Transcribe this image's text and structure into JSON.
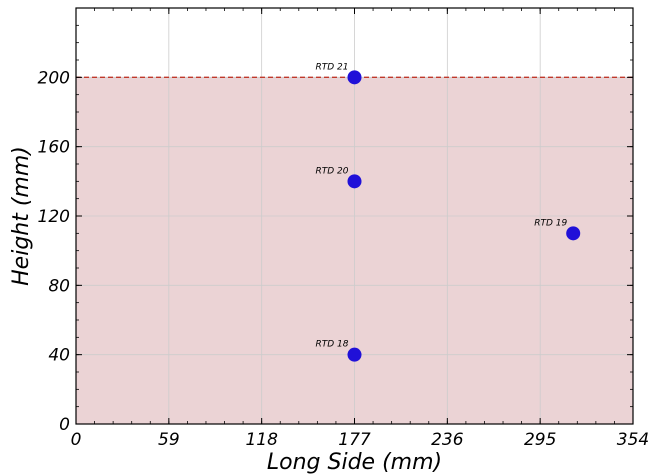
{
  "chart_data": {
    "type": "scatter",
    "xlabel": "Long Side (mm)",
    "ylabel": "Height (mm)",
    "xlim": [
      0,
      354
    ],
    "ylim": [
      0,
      240
    ],
    "xticks": [
      0,
      59,
      118,
      177,
      236,
      295,
      354
    ],
    "yticks": [
      0,
      40,
      80,
      120,
      160,
      200
    ],
    "grid": true,
    "fill_region": {
      "y_from": 0,
      "y_to": 200,
      "color": "#ebd3d5"
    },
    "reference_line": {
      "y": 200,
      "style": "dashed",
      "color": "#c0392b"
    },
    "point_color": "#2010d8",
    "points": [
      {
        "label": "RTD 21",
        "x": 177,
        "y": 200
      },
      {
        "label": "RTD 20",
        "x": 177,
        "y": 140
      },
      {
        "label": "RTD 19",
        "x": 316,
        "y": 110
      },
      {
        "label": "RTD 18",
        "x": 177,
        "y": 40
      }
    ]
  }
}
